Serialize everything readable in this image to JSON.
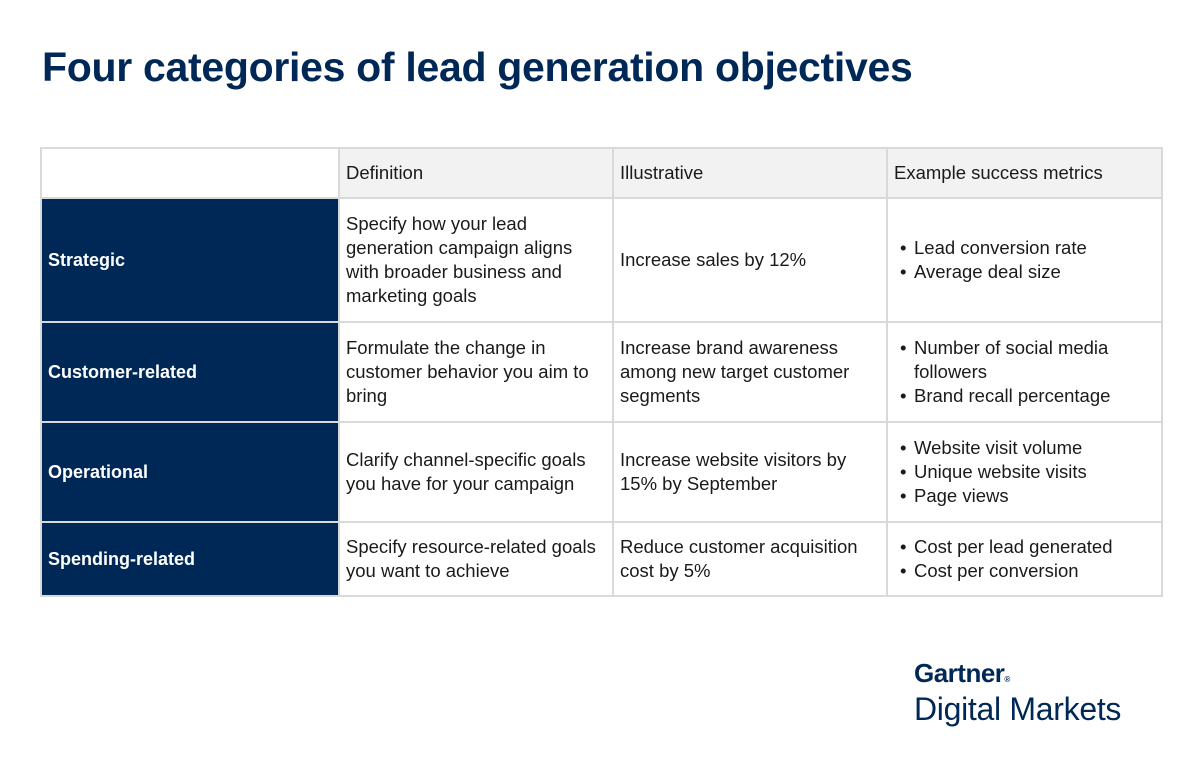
{
  "title": "Four categories of lead generation objectives",
  "table": {
    "headers": [
      "",
      "Definition",
      "Illustrative",
      "Example success metrics"
    ],
    "rows": [
      {
        "category": "Strategic",
        "definition": "Specify how your lead generation campaign aligns with broader business and marketing goals",
        "illustrative": "Increase sales by 12%",
        "metrics": [
          "Lead conversion rate",
          "Average deal size"
        ]
      },
      {
        "category": "Customer-related",
        "definition": "Formulate the change in customer behavior you aim to bring",
        "illustrative": "Increase brand awareness among new target customer segments",
        "metrics": [
          "Number of social media followers",
          "Brand recall percentage"
        ]
      },
      {
        "category": "Operational",
        "definition": "Clarify channel-specific goals you have for your campaign",
        "illustrative": "Increase website visitors by 15% by September",
        "metrics": [
          "Website visit volume",
          "Unique website visits",
          "Page views"
        ]
      },
      {
        "category": "Spending-related",
        "definition": "Specify resource-related goals you want to achieve",
        "illustrative": "Reduce customer acquisition cost by 5%",
        "metrics": [
          "Cost per lead generated",
          "Cost per conversion"
        ]
      }
    ]
  },
  "logo": {
    "brand": "Gartner",
    "registered": "®",
    "product": "Digital Markets"
  },
  "colors": {
    "navy": "#002856",
    "header_bg": "#f2f2f2",
    "border": "#d9d9d9"
  }
}
